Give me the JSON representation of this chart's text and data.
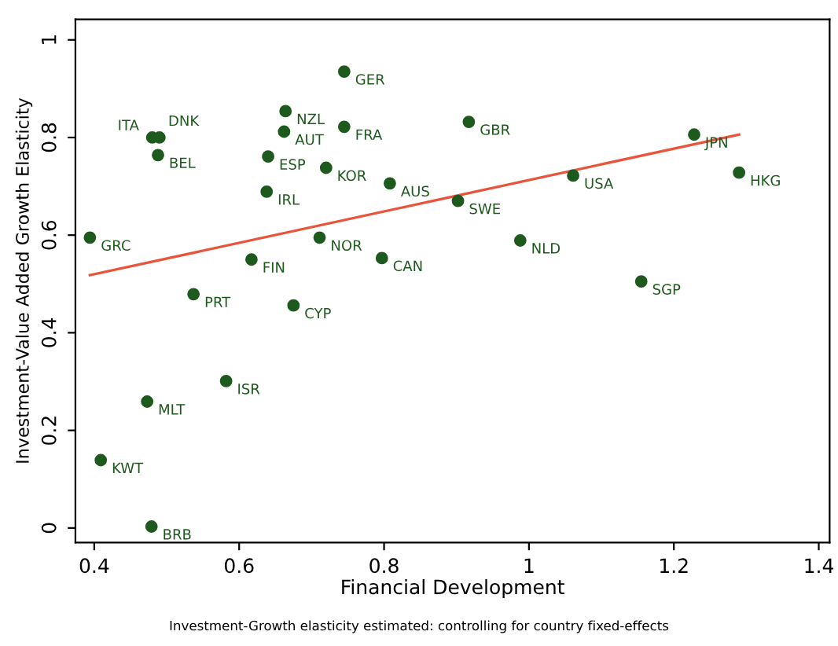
{
  "chart_data": {
    "type": "scatter",
    "xlabel": "Financial Development",
    "ylabel": "Investment-Value Added Growth Elasticity",
    "xlim": [
      0.374,
      1.415
    ],
    "ylim": [
      -0.03,
      1.042
    ],
    "xticks": [
      0.4,
      0.6,
      0.8,
      1,
      1.2,
      1.4
    ],
    "yticks": [
      0,
      0.2,
      0.4,
      0.6,
      0.8,
      1
    ],
    "grid": false,
    "series": [
      {
        "marker": "circle",
        "color": "#1e5a1e",
        "x": [
          0.394,
          0.48,
          0.49,
          0.488,
          0.745,
          0.664,
          0.662,
          0.745,
          0.64,
          0.72,
          0.638,
          0.808,
          0.917,
          0.902,
          1.061,
          1.228,
          1.29,
          0.988,
          1.155,
          0.711,
          0.797,
          0.617,
          0.537,
          0.675,
          0.582,
          0.473,
          0.409,
          0.479
        ],
        "values": [
          0.595,
          0.8,
          0.8,
          0.764,
          0.935,
          0.854,
          0.812,
          0.822,
          0.761,
          0.738,
          0.689,
          0.706,
          0.832,
          0.67,
          0.722,
          0.806,
          0.728,
          0.589,
          0.505,
          0.595,
          0.553,
          0.55,
          0.479,
          0.456,
          0.301,
          0.259,
          0.139,
          0.003
        ]
      },
      {
        "type": "line",
        "marker": "none",
        "color": "#e8553c",
        "x": [
          0.394,
          1.29
        ],
        "values": [
          0.518,
          0.806
        ]
      }
    ],
    "annotations": [
      {
        "text": "GRC",
        "x": 0.394,
        "y": 0.595
      },
      {
        "text": "ITA",
        "x": 0.48,
        "y": 0.8
      },
      {
        "text": "DNK",
        "x": 0.49,
        "y": 0.8
      },
      {
        "text": "BEL",
        "x": 0.488,
        "y": 0.764
      },
      {
        "text": "GER",
        "x": 0.745,
        "y": 0.935
      },
      {
        "text": "NZL",
        "x": 0.664,
        "y": 0.854
      },
      {
        "text": "AUT",
        "x": 0.662,
        "y": 0.812
      },
      {
        "text": "FRA",
        "x": 0.745,
        "y": 0.822
      },
      {
        "text": "ESP",
        "x": 0.64,
        "y": 0.761
      },
      {
        "text": "KOR",
        "x": 0.72,
        "y": 0.738
      },
      {
        "text": "IRL",
        "x": 0.638,
        "y": 0.689
      },
      {
        "text": "AUS",
        "x": 0.808,
        "y": 0.706
      },
      {
        "text": "GBR",
        "x": 0.917,
        "y": 0.832
      },
      {
        "text": "SWE",
        "x": 0.902,
        "y": 0.67
      },
      {
        "text": "USA",
        "x": 1.061,
        "y": 0.722
      },
      {
        "text": "JPN",
        "x": 1.228,
        "y": 0.806
      },
      {
        "text": "HKG",
        "x": 1.29,
        "y": 0.728
      },
      {
        "text": "NLD",
        "x": 0.988,
        "y": 0.589
      },
      {
        "text": "SGP",
        "x": 1.155,
        "y": 0.505
      },
      {
        "text": "NOR",
        "x": 0.711,
        "y": 0.595
      },
      {
        "text": "CAN",
        "x": 0.797,
        "y": 0.553
      },
      {
        "text": "FIN",
        "x": 0.617,
        "y": 0.55
      },
      {
        "text": "PRT",
        "x": 0.537,
        "y": 0.479
      },
      {
        "text": "CYP",
        "x": 0.675,
        "y": 0.456
      },
      {
        "text": "ISR",
        "x": 0.582,
        "y": 0.301
      },
      {
        "text": "MLT",
        "x": 0.473,
        "y": 0.259
      },
      {
        "text": "KWT",
        "x": 0.409,
        "y": 0.139
      },
      {
        "text": "BRB",
        "x": 0.479,
        "y": 0.003
      },
      "Investment-Growth elasticity estimated: controlling for country fixed-effects"
    ]
  }
}
